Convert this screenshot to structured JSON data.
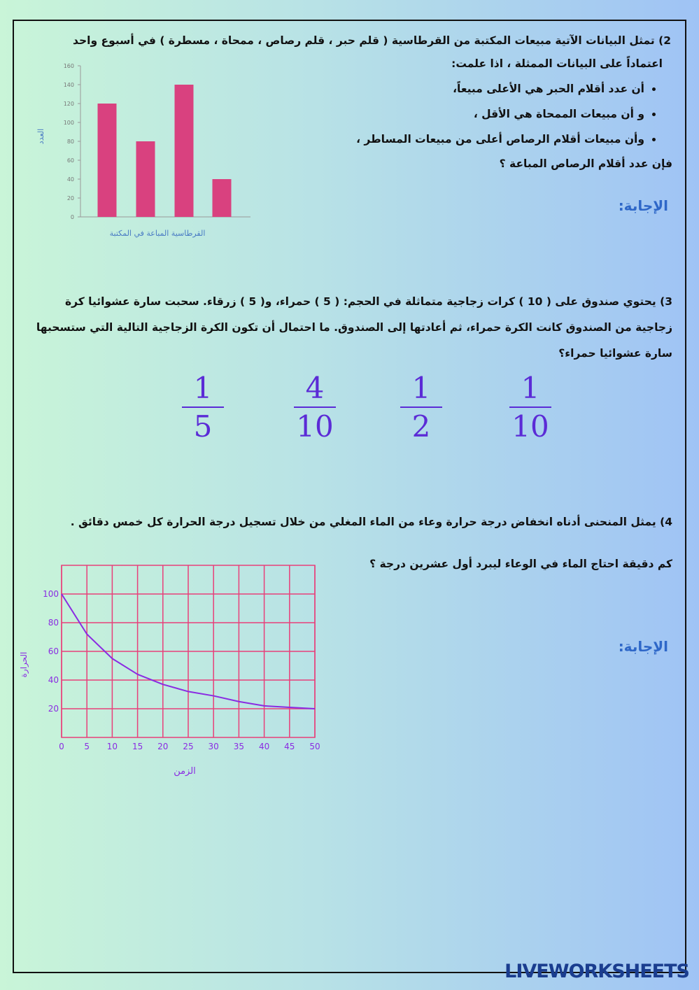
{
  "q2": {
    "title": "2) تمثل البيانات الآتية مبيعات المكتبة من القرطاسية ( قلم حبر ، قلم رصاص ، ممحاة ، مسطرة )  في أسبوع واحد",
    "intro": "اعتماداً على البيانات الممثلة ، اذا علمت:",
    "bullets": [
      "أن عدد أقلام الحبر هي الأعلى مبيعاً،",
      "و أن مبيعات الممحاة هي الأقل ،",
      "وأن مبيعات أقلام الرصاص أعلى من مبيعات المساطر ،"
    ],
    "question": "فإن عدد أقلام الرصاص المباعة ؟",
    "answer_label": "الإجابة:"
  },
  "chart1": {
    "type": "bar",
    "y_label": "العدد",
    "x_label": "القرطاسية المباعة في المكتبة",
    "values": [
      120,
      80,
      140,
      40
    ],
    "color": "#d9417f",
    "ylim": [
      0,
      160
    ],
    "yticks": [
      0,
      20,
      40,
      60,
      80,
      100,
      120,
      140,
      160
    ]
  },
  "q3": {
    "text": "3) يحتوي صندوق على ( 10 ) كرات زجاجية متماثلة في الحجم: ( 5 ) حمراء، و( 5 ) زرقاء. سحبت سارة عشوائيا كرة زجاجية من الصندوق كانت الكرة حمراء، ثم أعادتها إلى الصندوق. ما احتمال أن تكون الكرة الزجاجية التالية التي ستسحبها سارة عشوائيا حمراء؟",
    "choices": [
      {
        "num": 1,
        "den": 5
      },
      {
        "num": 4,
        "den": 10
      },
      {
        "num": 1,
        "den": 2
      },
      {
        "num": 1,
        "den": 10
      }
    ]
  },
  "q4": {
    "text": "4) يمثل المنحنى أدناه انخفاض درجة حرارة وعاء من الماء المغلي من خلال تسجيل درجة الحرارة كل خمس دقائق .",
    "question": "كم دقيقة احتاج الماء في الوعاء ليبرد أول عشرين درجة ؟",
    "answer_label": "الإجابة:"
  },
  "chart2": {
    "type": "line",
    "y_label": "الحرارة",
    "x_label": "الزمن",
    "x": [
      0,
      5,
      10,
      15,
      20,
      25,
      30,
      35,
      40,
      45,
      50
    ],
    "values": [
      100,
      72,
      55,
      44,
      37,
      32,
      29,
      25,
      22,
      21,
      20
    ],
    "color": "#8a2be2",
    "grid_color": "#e8407a",
    "xlim": [
      0,
      50
    ],
    "xticks": [
      0,
      5,
      10,
      15,
      20,
      25,
      30,
      35,
      40,
      45,
      50
    ],
    "ylim": [
      0,
      120
    ],
    "yticks": [
      20,
      40,
      60,
      80,
      100
    ]
  },
  "footer": "LIVEWORKSHEETS"
}
